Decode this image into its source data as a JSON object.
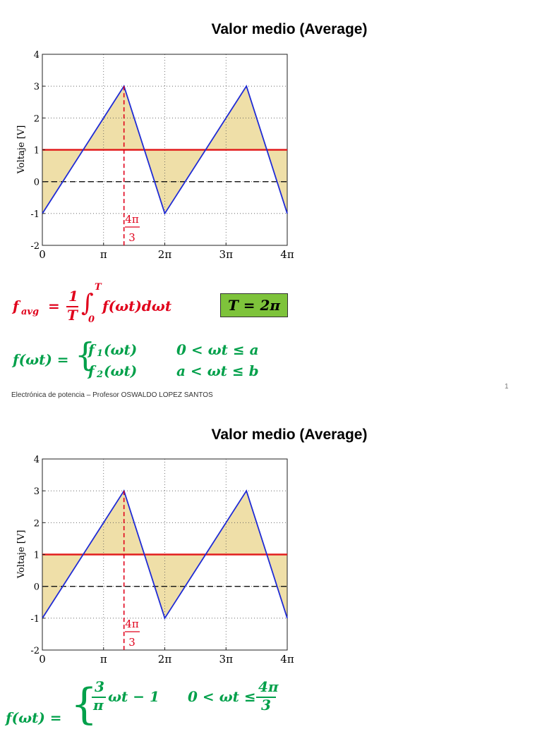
{
  "slides": [
    {
      "title": "Valor medio  (Average)",
      "ylabel": "Voltaje [V]",
      "marker_num": "4π",
      "marker_den": "3",
      "favg_lhs": "f",
      "favg_sub": "avg",
      "favg_rhs_num": "1",
      "favg_rhs_den": "T",
      "favg_int_upper": "T",
      "favg_int_lower": "0",
      "favg_integrand": "f(ωt)dωt",
      "period": "T = 2π",
      "piecewise_lhs": "f(ωt) =",
      "piece1_fn": "f",
      "piece1_sub": "1",
      "piece1_arg": "(ωt)",
      "piece1_cond": "0 < ωt ≤ a",
      "piece2_fn": "f",
      "piece2_sub": "2",
      "piece2_arg": "(ωt)",
      "piece2_cond": "a < ωt ≤ b",
      "footer": "Electrónica de potencia – Profesor OSWALDO LOPEZ SANTOS",
      "page_number": "1"
    },
    {
      "title": "Valor medio  (Average)",
      "ylabel": "Voltaje [V]",
      "marker_num": "4π",
      "marker_den": "3",
      "piecewise_lhs": "f(ωt) =",
      "piece1_coef_num": "3",
      "piece1_coef_den": "π",
      "piece1_rest": "ωt − 1",
      "piece1_cond_left": "0 < ωt ≤",
      "piece1_cond_num": "4π",
      "piece1_cond_den": "3"
    }
  ],
  "chart_data": [
    {
      "type": "area",
      "xlabel": "",
      "ylabel": "Voltaje [V]",
      "xlim": [
        0,
        12.566
      ],
      "ylim": [
        -2,
        4
      ],
      "x_ticks": [
        "0",
        "π",
        "2π",
        "3π",
        "4π"
      ],
      "y_ticks": [
        "-2",
        "-1",
        "0",
        "1",
        "2",
        "3",
        "4"
      ],
      "grid": true,
      "series": [
        {
          "values_x": [
            0,
            4.189,
            6.283,
            10.472,
            12.566
          ],
          "values_y": [
            -1,
            3,
            -1,
            3,
            -1
          ],
          "color": "#1f2bd6"
        }
      ],
      "average_line": 1,
      "average_color": "#e21d1d",
      "zero_line": 0,
      "marker_x": 4.189,
      "fill_color": "#efdfa8"
    },
    {
      "type": "area",
      "xlabel": "",
      "ylabel": "Voltaje [V]",
      "xlim": [
        0,
        12.566
      ],
      "ylim": [
        -2,
        4
      ],
      "x_ticks": [
        "0",
        "π",
        "2π",
        "3π",
        "4π"
      ],
      "y_ticks": [
        "-2",
        "-1",
        "0",
        "1",
        "2",
        "3",
        "4"
      ],
      "grid": true,
      "series": [
        {
          "values_x": [
            0,
            4.189,
            6.283,
            10.472,
            12.566
          ],
          "values_y": [
            -1,
            3,
            -1,
            3,
            -1
          ],
          "color": "#1f2bd6"
        }
      ],
      "average_line": 1,
      "average_color": "#e21d1d",
      "zero_line": 0,
      "marker_x": 4.189,
      "fill_color": "#efdfa8"
    }
  ]
}
